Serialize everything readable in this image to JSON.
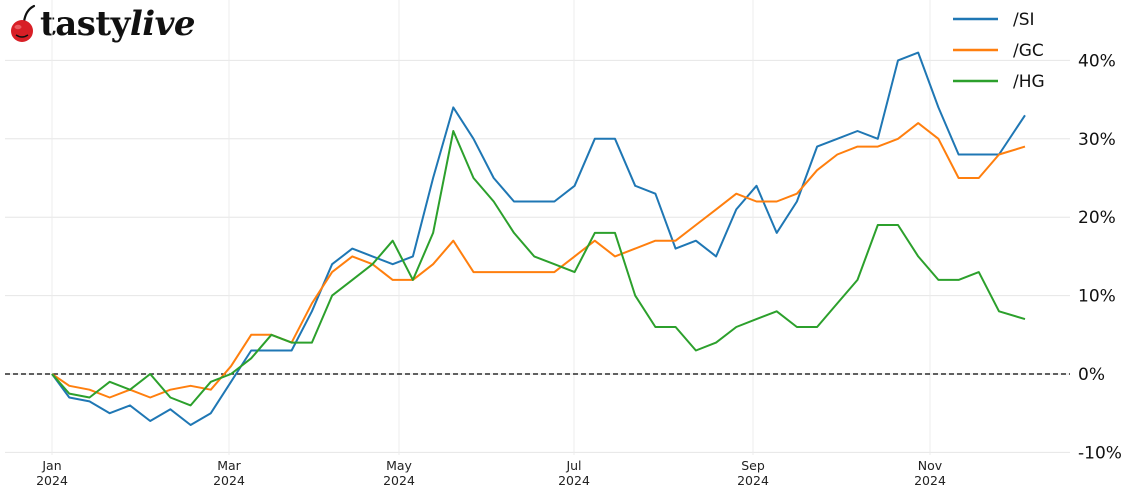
{
  "logo": {
    "brand_prefix": "tasty",
    "brand_suffix": "live",
    "icon": "cherry-icon",
    "icon_color": "#d81f26"
  },
  "chart_data": {
    "type": "line",
    "title": "",
    "xlabel": "",
    "ylabel": "",
    "ylim": [
      -10,
      47
    ],
    "y_ticks": [
      "-10%",
      "0%",
      "10%",
      "20%",
      "30%",
      "40%"
    ],
    "y_tick_values": [
      -10,
      0,
      10,
      20,
      30,
      40
    ],
    "x_ticks": [
      {
        "month": "Jan",
        "year": "2024"
      },
      {
        "month": "Mar",
        "year": "2024"
      },
      {
        "month": "May",
        "year": "2024"
      },
      {
        "month": "Jul",
        "year": "2024"
      },
      {
        "month": "Sep",
        "year": "2024"
      },
      {
        "month": "Nov",
        "year": "2024"
      }
    ],
    "grid": true,
    "zero_line": "dashed",
    "legend_position": "upper right",
    "x": [
      "2024-01-02",
      "2024-01-08",
      "2024-01-15",
      "2024-01-22",
      "2024-01-29",
      "2024-02-05",
      "2024-02-12",
      "2024-02-19",
      "2024-02-26",
      "2024-03-04",
      "2024-03-11",
      "2024-03-18",
      "2024-03-25",
      "2024-04-01",
      "2024-04-08",
      "2024-04-15",
      "2024-04-22",
      "2024-04-29",
      "2024-05-06",
      "2024-05-13",
      "2024-05-20",
      "2024-05-27",
      "2024-06-03",
      "2024-06-10",
      "2024-06-17",
      "2024-06-24",
      "2024-07-01",
      "2024-07-08",
      "2024-07-15",
      "2024-07-22",
      "2024-07-29",
      "2024-08-05",
      "2024-08-12",
      "2024-08-19",
      "2024-08-26",
      "2024-09-02",
      "2024-09-09",
      "2024-09-16",
      "2024-09-23",
      "2024-09-30",
      "2024-10-07",
      "2024-10-14",
      "2024-10-21",
      "2024-10-28",
      "2024-11-04",
      "2024-11-11",
      "2024-11-18",
      "2024-11-25",
      "2024-12-04"
    ],
    "series": [
      {
        "name": "/SI",
        "color": "#1f77b4",
        "values": [
          0,
          -3,
          -3.5,
          -5,
          -4,
          -6,
          -4.5,
          -6.5,
          -5,
          -1,
          3,
          3,
          3,
          8,
          14,
          16,
          15,
          14,
          15,
          25,
          34,
          30,
          25,
          22,
          22,
          22,
          24,
          30,
          30,
          24,
          23,
          16,
          17,
          15,
          21,
          24,
          18,
          22,
          29,
          30,
          31,
          30,
          40,
          41,
          34,
          28,
          28,
          28,
          33
        ]
      },
      {
        "name": "/GC",
        "color": "#ff7f0e",
        "values": [
          0,
          -1.5,
          -2,
          -3,
          -2,
          -3,
          -2,
          -1.5,
          -2,
          1,
          5,
          5,
          4,
          9,
          13,
          15,
          14,
          12,
          12,
          14,
          17,
          13,
          13,
          13,
          13,
          13,
          15,
          17,
          15,
          16,
          17,
          17,
          19,
          21,
          23,
          22,
          22,
          23,
          26,
          28,
          29,
          29,
          30,
          32,
          30,
          25,
          25,
          28,
          29
        ]
      },
      {
        "name": "/HG",
        "color": "#2ca02c",
        "values": [
          0,
          -2.5,
          -3,
          -1,
          -2,
          0,
          -3,
          -4,
          -1,
          0,
          2,
          5,
          4,
          4,
          10,
          12,
          14,
          17,
          12,
          18,
          31,
          25,
          22,
          18,
          15,
          14,
          13,
          18,
          18,
          10,
          6,
          6,
          3,
          4,
          6,
          7,
          8,
          6,
          6,
          9,
          12,
          19,
          19,
          15,
          12,
          12,
          13,
          8,
          7
        ]
      }
    ]
  }
}
